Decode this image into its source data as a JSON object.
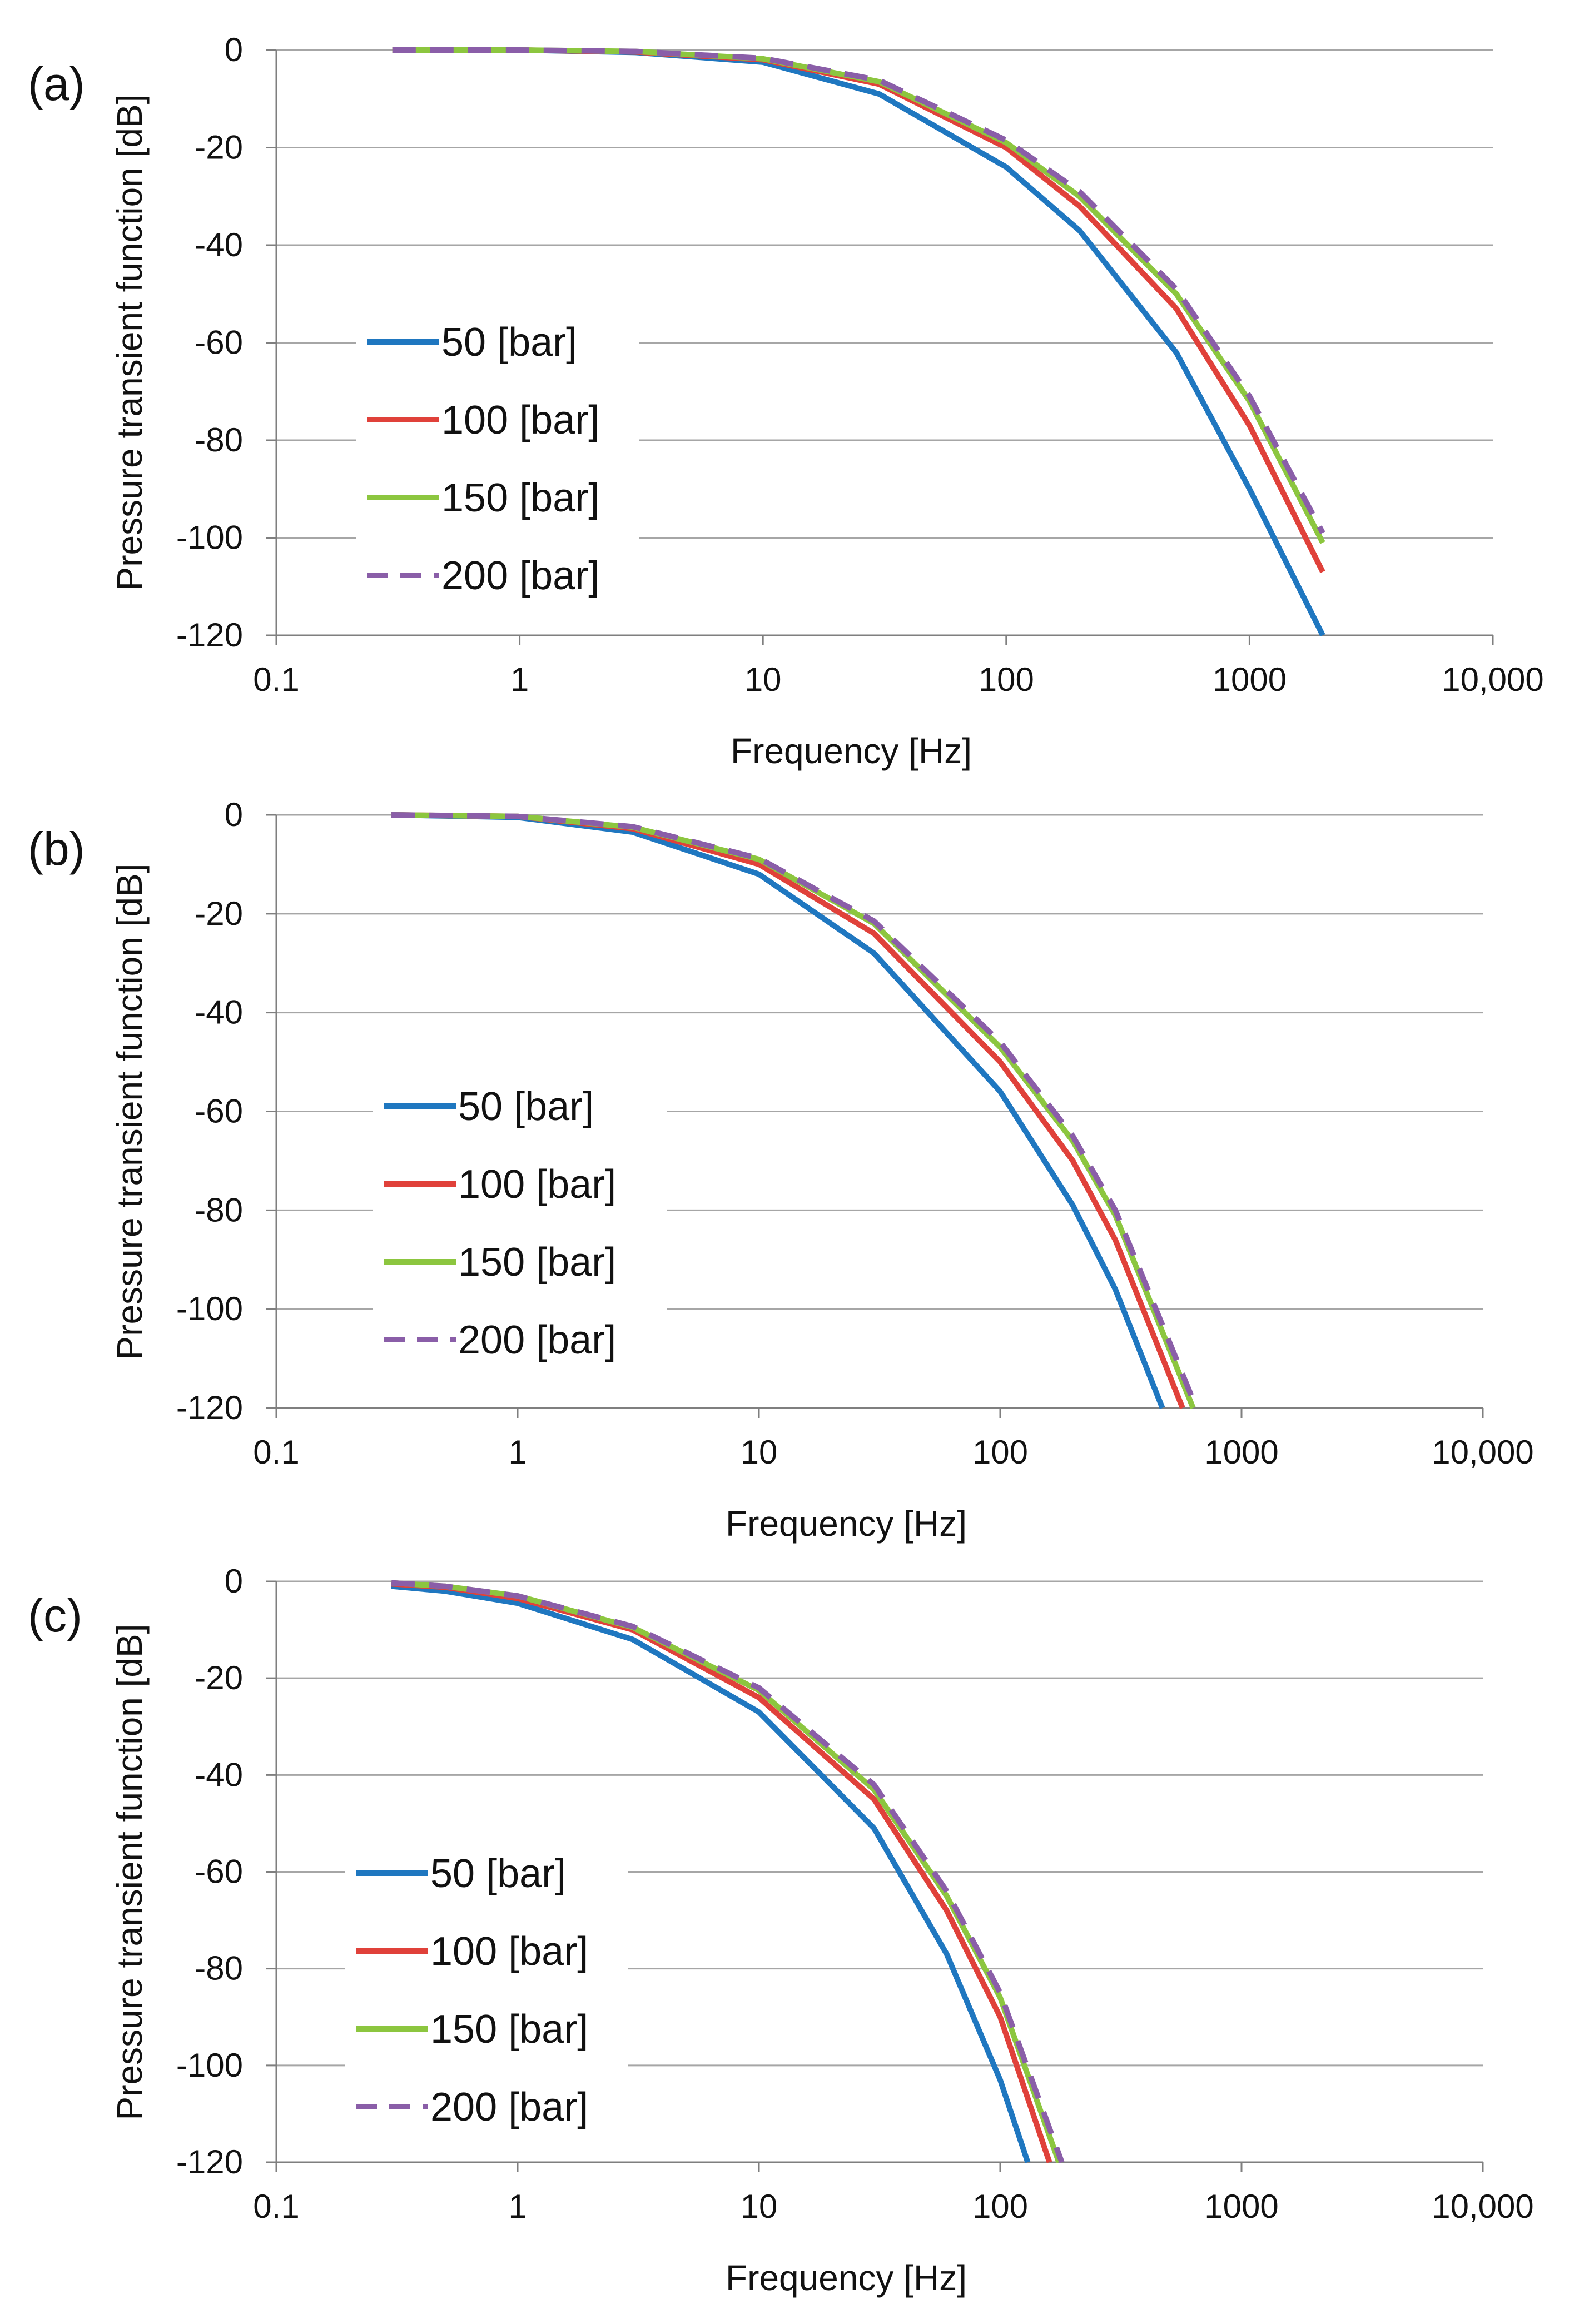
{
  "figure": {
    "ylabel": "Pressure transient function [dB]",
    "xlabel": "Frequency [Hz]"
  },
  "colors": {
    "50 [bar]": "#1f77c0",
    "100 [bar]": "#e0413a",
    "150 [bar]": "#8cc63f",
    "200 [bar]": "#8a5ea8"
  },
  "chart_data": [
    {
      "type": "line",
      "panel": "(a)",
      "xscale": "log",
      "xlim": [
        0.1,
        10000
      ],
      "ylim": [
        -120,
        0
      ],
      "xticks": [
        0.1,
        1,
        10,
        100,
        1000,
        10000
      ],
      "xtick_labels": [
        "0.1",
        "1",
        "10",
        "100",
        "1000",
        "10,000"
      ],
      "yticks": [
        0,
        -20,
        -40,
        -60,
        -80,
        -100,
        -120
      ],
      "ytick_labels": [
        "0",
        "-20",
        "-40",
        "-60",
        "-80",
        "-100",
        "-120"
      ],
      "xlabel": "Frequency [Hz]",
      "ylabel": "Pressure transient function [dB]",
      "legend": "center-left",
      "series": [
        {
          "name": "50 [bar]",
          "style": "solid",
          "x": [
            0.3,
            1,
            3,
            10,
            30,
            100,
            200,
            500,
            1000,
            2000
          ],
          "y": [
            0,
            0,
            -0.5,
            -2.5,
            -9,
            -24,
            -37,
            -62,
            -90,
            -120
          ]
        },
        {
          "name": "100 [bar]",
          "style": "solid",
          "x": [
            0.3,
            1,
            3,
            10,
            30,
            100,
            200,
            500,
            1000,
            2000
          ],
          "y": [
            0,
            0,
            -0.4,
            -2,
            -7,
            -20,
            -32,
            -53,
            -77,
            -107
          ]
        },
        {
          "name": "150 [bar]",
          "style": "solid",
          "x": [
            0.3,
            1,
            3,
            10,
            30,
            100,
            200,
            500,
            1000,
            2000
          ],
          "y": [
            0,
            0,
            -0.3,
            -1.8,
            -6.5,
            -19,
            -30,
            -50,
            -72,
            -101
          ]
        },
        {
          "name": "200 [bar]",
          "style": "dashed",
          "x": [
            0.3,
            1,
            3,
            10,
            30,
            100,
            200,
            500,
            1000,
            2000
          ],
          "y": [
            0,
            0,
            -0.3,
            -1.7,
            -6.2,
            -18.5,
            -29,
            -49,
            -71,
            -99
          ]
        }
      ]
    },
    {
      "type": "line",
      "panel": "(b)",
      "xscale": "log",
      "xlim": [
        0.1,
        10000
      ],
      "ylim": [
        -120,
        0
      ],
      "xticks": [
        0.1,
        1,
        10,
        100,
        1000,
        10000
      ],
      "xtick_labels": [
        "0.1",
        "1",
        "10",
        "100",
        "1000",
        "10,000"
      ],
      "yticks": [
        0,
        -20,
        -40,
        -60,
        -80,
        -100,
        -120
      ],
      "ytick_labels": [
        "0",
        "-20",
        "-40",
        "-60",
        "-80",
        "-100",
        "-120"
      ],
      "xlabel": "Frequency [Hz]",
      "ylabel": "Pressure transient function [dB]",
      "legend": "center-left",
      "series": [
        {
          "name": "50 [bar]",
          "style": "solid",
          "x": [
            0.3,
            1,
            3,
            10,
            30,
            100,
            200,
            300,
            470
          ],
          "y": [
            0,
            -0.5,
            -3.5,
            -12,
            -28,
            -56,
            -79,
            -96,
            -120
          ]
        },
        {
          "name": "100 [bar]",
          "style": "solid",
          "x": [
            0.3,
            1,
            3,
            10,
            30,
            100,
            200,
            300,
            570
          ],
          "y": [
            0,
            -0.3,
            -2.8,
            -10,
            -24,
            -50,
            -70,
            -86,
            -120
          ]
        },
        {
          "name": "150 [bar]",
          "style": "solid",
          "x": [
            0.3,
            1,
            3,
            10,
            30,
            100,
            200,
            300,
            630
          ],
          "y": [
            0,
            -0.3,
            -2.5,
            -9,
            -22,
            -47,
            -66,
            -81,
            -120
          ]
        },
        {
          "name": "200 [bar]",
          "style": "dashed",
          "x": [
            0.3,
            1,
            3,
            10,
            30,
            100,
            200,
            300,
            650
          ],
          "y": [
            0,
            -0.3,
            -2.4,
            -8.8,
            -21.5,
            -46,
            -65,
            -80,
            -120
          ]
        }
      ]
    },
    {
      "type": "line",
      "panel": "(c)",
      "xscale": "log",
      "xlim": [
        0.1,
        10000
      ],
      "ylim": [
        -120,
        0
      ],
      "xticks": [
        0.1,
        1,
        10,
        100,
        1000,
        10000
      ],
      "xtick_labels": [
        "0.1",
        "1",
        "10",
        "100",
        "1000",
        "10,000"
      ],
      "yticks": [
        0,
        -20,
        -40,
        -60,
        -80,
        -100,
        -120
      ],
      "ytick_labels": [
        "0",
        "-20",
        "-40",
        "-60",
        "-80",
        "-100",
        "-120"
      ],
      "xlabel": "Frequency [Hz]",
      "ylabel": "Pressure transient function [dB]",
      "legend": "center-left",
      "series": [
        {
          "name": "50 [bar]",
          "style": "solid",
          "x": [
            0.3,
            0.5,
            1,
            3,
            10,
            30,
            60,
            100,
            130
          ],
          "y": [
            -1,
            -2,
            -4.5,
            -12,
            -27,
            -51,
            -77,
            -103,
            -120
          ]
        },
        {
          "name": "100 [bar]",
          "style": "solid",
          "x": [
            0.3,
            0.5,
            1,
            3,
            10,
            30,
            60,
            100,
            160
          ],
          "y": [
            -0.5,
            -1.2,
            -3.5,
            -10,
            -24,
            -45,
            -68,
            -90,
            -120
          ]
        },
        {
          "name": "150 [bar]",
          "style": "solid",
          "x": [
            0.3,
            0.5,
            1,
            3,
            10,
            30,
            60,
            100,
            175
          ],
          "y": [
            -0.3,
            -1,
            -3,
            -9.5,
            -22.5,
            -43,
            -65,
            -86,
            -120
          ]
        },
        {
          "name": "200 [bar]",
          "style": "dashed",
          "x": [
            0.3,
            0.5,
            1,
            3,
            10,
            30,
            60,
            100,
            180
          ],
          "y": [
            -0.3,
            -1,
            -3,
            -9.3,
            -22,
            -42,
            -64,
            -85,
            -120
          ]
        }
      ]
    }
  ]
}
